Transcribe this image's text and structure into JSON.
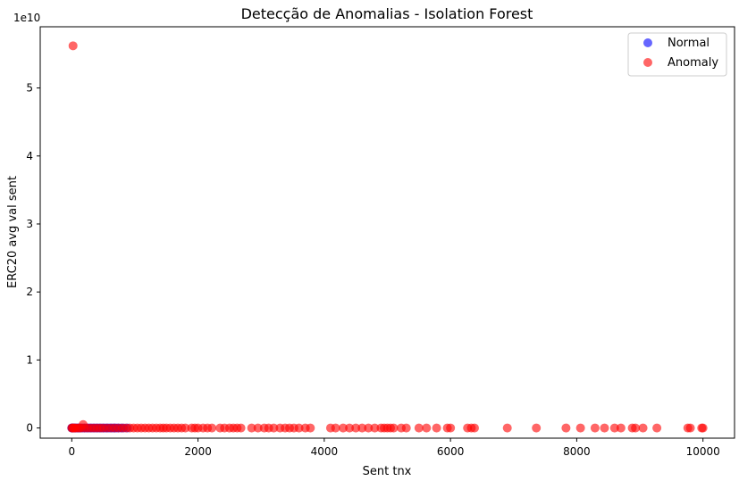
{
  "chart_data": {
    "type": "scatter",
    "title": "Detecção de Anomalias - Isolation Forest",
    "xlabel": "Sent tnx",
    "ylabel": "ERC20 avg val sent",
    "y_offset_text": "1e10",
    "xlim": [
      -500,
      10500
    ],
    "ylim": [
      -0.15,
      5.9
    ],
    "x_ticks": [
      0,
      2000,
      4000,
      6000,
      8000,
      10000
    ],
    "y_ticks": [
      0,
      1,
      2,
      3,
      4,
      5
    ],
    "grid": false,
    "legend_position": "top-right",
    "series": [
      {
        "name": "Normal",
        "color": "#0000ff",
        "points": [
          [
            0,
            0
          ],
          [
            5,
            0
          ],
          [
            10,
            0
          ],
          [
            20,
            0
          ],
          [
            30,
            0
          ],
          [
            45,
            0
          ],
          [
            60,
            0
          ],
          [
            80,
            0
          ],
          [
            100,
            0
          ],
          [
            120,
            0
          ],
          [
            140,
            0
          ],
          [
            170,
            0
          ],
          [
            200,
            0
          ],
          [
            230,
            0
          ],
          [
            260,
            0
          ],
          [
            290,
            0
          ],
          [
            320,
            0
          ],
          [
            350,
            0
          ],
          [
            380,
            0
          ],
          [
            410,
            0
          ],
          [
            440,
            0
          ],
          [
            470,
            0
          ],
          [
            500,
            0
          ],
          [
            530,
            0
          ],
          [
            560,
            0
          ],
          [
            590,
            0
          ],
          [
            620,
            0
          ],
          [
            650,
            0
          ],
          [
            680,
            0
          ],
          [
            710,
            0
          ],
          [
            740,
            0
          ],
          [
            780,
            0
          ],
          [
            820,
            0
          ],
          [
            880,
            0
          ]
        ]
      },
      {
        "name": "Anomaly",
        "color": "#ff0000",
        "points": [
          [
            20,
            5.62
          ],
          [
            180,
            0.05
          ],
          [
            0,
            0
          ],
          [
            10,
            0
          ],
          [
            25,
            0
          ],
          [
            40,
            0
          ],
          [
            60,
            0
          ],
          [
            90,
            0
          ],
          [
            120,
            0
          ],
          [
            150,
            0
          ],
          [
            200,
            0
          ],
          [
            250,
            0
          ],
          [
            300,
            0
          ],
          [
            350,
            0
          ],
          [
            400,
            0
          ],
          [
            450,
            0
          ],
          [
            500,
            0
          ],
          [
            560,
            0
          ],
          [
            620,
            0
          ],
          [
            680,
            0
          ],
          [
            740,
            0
          ],
          [
            800,
            0
          ],
          [
            860,
            0
          ],
          [
            920,
            0
          ],
          [
            980,
            0
          ],
          [
            1040,
            0
          ],
          [
            1100,
            0
          ],
          [
            1160,
            0
          ],
          [
            1220,
            0
          ],
          [
            1280,
            0
          ],
          [
            1340,
            0
          ],
          [
            1400,
            0
          ],
          [
            1450,
            0
          ],
          [
            1500,
            0
          ],
          [
            1560,
            0
          ],
          [
            1620,
            0
          ],
          [
            1680,
            0
          ],
          [
            1740,
            0
          ],
          [
            1800,
            0
          ],
          [
            1900,
            0
          ],
          [
            1950,
            0
          ],
          [
            2000,
            0
          ],
          [
            2080,
            0
          ],
          [
            2150,
            0
          ],
          [
            2220,
            0
          ],
          [
            2350,
            0
          ],
          [
            2420,
            0
          ],
          [
            2500,
            0
          ],
          [
            2560,
            0
          ],
          [
            2620,
            0
          ],
          [
            2680,
            0
          ],
          [
            2850,
            0
          ],
          [
            2950,
            0
          ],
          [
            3050,
            0
          ],
          [
            3120,
            0
          ],
          [
            3200,
            0
          ],
          [
            3300,
            0
          ],
          [
            3380,
            0
          ],
          [
            3450,
            0
          ],
          [
            3520,
            0
          ],
          [
            3600,
            0
          ],
          [
            3700,
            0
          ],
          [
            3780,
            0
          ],
          [
            4100,
            0
          ],
          [
            4180,
            0
          ],
          [
            4300,
            0
          ],
          [
            4400,
            0
          ],
          [
            4500,
            0
          ],
          [
            4600,
            0
          ],
          [
            4700,
            0
          ],
          [
            4800,
            0
          ],
          [
            4900,
            0
          ],
          [
            4950,
            0
          ],
          [
            5000,
            0
          ],
          [
            5050,
            0
          ],
          [
            5100,
            0
          ],
          [
            5220,
            0
          ],
          [
            5300,
            0
          ],
          [
            5500,
            0
          ],
          [
            5620,
            0
          ],
          [
            5780,
            0
          ],
          [
            5950,
            0
          ],
          [
            6000,
            0
          ],
          [
            6270,
            0
          ],
          [
            6330,
            0
          ],
          [
            6380,
            0
          ],
          [
            6900,
            0
          ],
          [
            7360,
            0
          ],
          [
            7830,
            0
          ],
          [
            8060,
            0
          ],
          [
            8290,
            0
          ],
          [
            8440,
            0
          ],
          [
            8600,
            0
          ],
          [
            8700,
            0
          ],
          [
            8880,
            0
          ],
          [
            8930,
            0
          ],
          [
            9050,
            0
          ],
          [
            9270,
            0
          ],
          [
            9760,
            0
          ],
          [
            9800,
            0
          ],
          [
            9980,
            0
          ],
          [
            10000,
            0
          ]
        ]
      }
    ]
  }
}
